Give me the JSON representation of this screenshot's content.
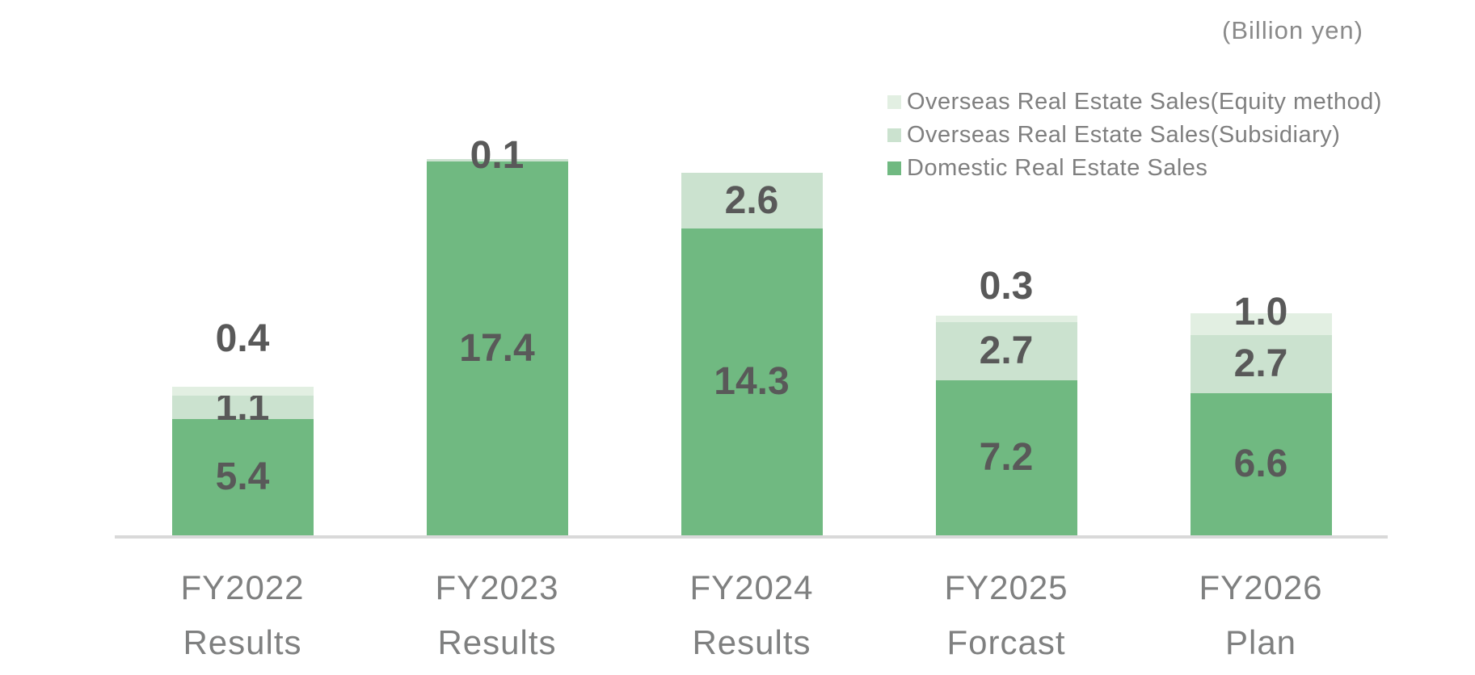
{
  "header": {
    "unit_label": "(Billion yen)"
  },
  "legend": {
    "items": [
      {
        "key": "equity",
        "label": "Overseas Real Estate Sales(Equity method)",
        "color": "#e2efe2"
      },
      {
        "key": "subsidiary",
        "label": "Overseas Real Estate Sales(Subsidiary)",
        "color": "#cbe2cf"
      },
      {
        "key": "domestic",
        "label": "Domestic Real Estate Sales",
        "color": "#70b981"
      }
    ]
  },
  "chart_data": {
    "type": "bar",
    "stacked": true,
    "title": "",
    "unit": "Billion yen",
    "grid": false,
    "legend_position": "top-right",
    "ylim": [
      0,
      18
    ],
    "categories": [
      {
        "line1": "FY2022",
        "line2": "Results"
      },
      {
        "line1": "FY2023",
        "line2": "Results"
      },
      {
        "line1": "FY2024",
        "line2": "Results"
      },
      {
        "line1": "FY2025",
        "line2": "Forcast"
      },
      {
        "line1": "FY2026",
        "line2": "Plan"
      }
    ],
    "series": [
      {
        "name": "Domestic Real Estate Sales",
        "key": "domestic",
        "color": "#70b981",
        "values": [
          5.4,
          17.4,
          14.3,
          7.2,
          6.6
        ]
      },
      {
        "name": "Overseas Real Estate Sales(Subsidiary)",
        "key": "subsidiary",
        "color": "#cbe2cf",
        "values": [
          1.1,
          0.1,
          2.6,
          2.7,
          2.7
        ]
      },
      {
        "name": "Overseas Real Estate Sales(Equity method)",
        "key": "equity",
        "color": "#e2efe2",
        "values": [
          0.4,
          0,
          0,
          0.3,
          1.0
        ]
      }
    ],
    "data_labels": {
      "FY2022": {
        "domestic": "5.4",
        "subsidiary": "1.1",
        "equity": "0.4"
      },
      "FY2023": {
        "domestic": "17.4",
        "subsidiary": "0.1"
      },
      "FY2024": {
        "domestic": "14.3",
        "subsidiary": "2.6"
      },
      "FY2025": {
        "domestic": "7.2",
        "subsidiary": "2.7",
        "equity": "0.3"
      },
      "FY2026": {
        "domestic": "6.6",
        "subsidiary": "2.7",
        "equity": "1.0"
      }
    },
    "colors": {
      "value_label_text": "#595959",
      "axis_text": "#7f8080",
      "legend_text": "#7f7f7f",
      "axis_line": "#d9d9d9"
    }
  }
}
